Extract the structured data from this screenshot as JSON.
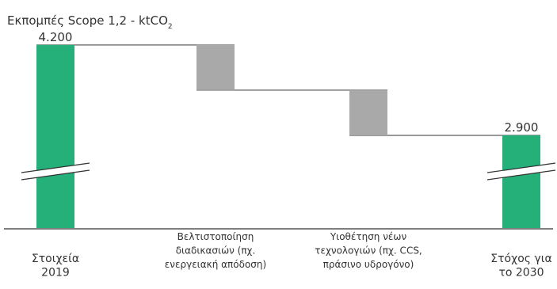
{
  "chart_data": {
    "type": "waterfall",
    "title": "Εκπομπές Scope 1,2 - ktCO",
    "title_subscript": "2",
    "categories": [
      [
        "Στοιχεία",
        "2019"
      ],
      [
        "Βελτιστοποίηση",
        "διαδικασιών (πχ.",
        "ενεργειακή απόδοση)"
      ],
      [
        "Υιοθέτηση νέων",
        "τεχνολογιών (πχ. CCS,",
        "πράσινο υδρογόνο)"
      ],
      [
        "Στόχος για",
        "το 2030"
      ]
    ],
    "values": [
      4200,
      -650,
      -650,
      2900
    ],
    "value_labels": [
      "4.200",
      "",
      "",
      "2.900"
    ],
    "bar_roles": [
      "total",
      "decrease",
      "decrease",
      "total"
    ],
    "axis_break": true,
    "colors": {
      "total": "#25b07a",
      "decrease": "#a9a9a9",
      "connector": "#333333",
      "axis": "#333333",
      "text": "#333333"
    }
  }
}
